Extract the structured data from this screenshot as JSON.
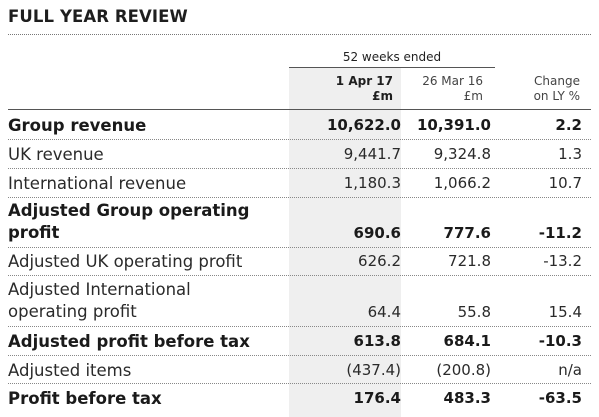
{
  "title": "FULL YEAR REVIEW",
  "period_header": "52 weeks ended",
  "columns": [
    {
      "line1": "1 Apr 17",
      "line2": "£m"
    },
    {
      "line1": "26 Mar 16",
      "line2": "£m"
    },
    {
      "line1": "Change",
      "line2": "on LY %"
    }
  ],
  "rows": [
    {
      "label": "Group revenue",
      "values": [
        "10,622.0",
        "10,391.0",
        "2.2"
      ]
    },
    {
      "label": "UK revenue",
      "values": [
        "9,441.7",
        "9,324.8",
        "1.3"
      ]
    },
    {
      "label": "International revenue",
      "values": [
        "1,180.3",
        "1,066.2",
        "10.7"
      ]
    },
    {
      "label_line1": "Adjusted Group operating",
      "label_line2": "profit",
      "values": [
        "690.6",
        "777.6",
        "-11.2"
      ]
    },
    {
      "label": "Adjusted UK operating profit",
      "values": [
        "626.2",
        "721.8",
        "-13.2"
      ]
    },
    {
      "label_line1": "Adjusted International",
      "label_line2": "operating profit",
      "values": [
        "64.4",
        "55.8",
        "15.4"
      ]
    },
    {
      "label": "Adjusted profit before tax",
      "values": [
        "613.8",
        "684.1",
        "-10.3"
      ]
    },
    {
      "label": "Adjusted items",
      "values": [
        "(437.4)",
        "(200.8)",
        "n/a"
      ]
    },
    {
      "label": "Profit before tax",
      "values": [
        "176.4",
        "483.3",
        "-63.5"
      ]
    }
  ]
}
